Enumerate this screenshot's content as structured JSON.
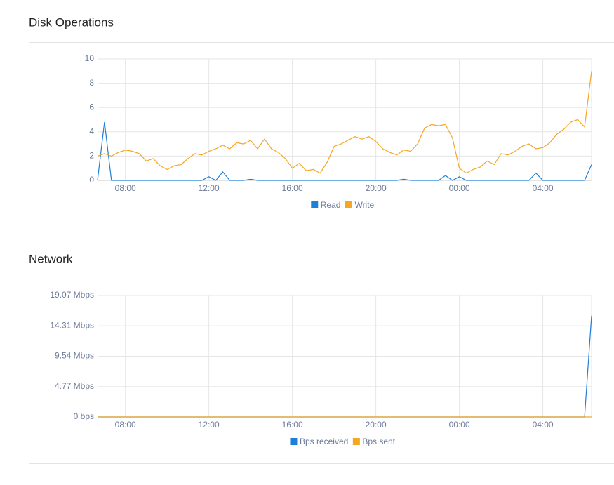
{
  "chart_data": [
    {
      "type": "line",
      "title": "Disk Operations",
      "categories": [
        null,
        null,
        null,
        null,
        "08:00",
        null,
        null,
        null,
        null,
        null,
        null,
        null,
        null,
        null,
        null,
        null,
        "12:00",
        null,
        null,
        null,
        null,
        null,
        null,
        null,
        null,
        null,
        null,
        null,
        "16:00",
        null,
        null,
        null,
        null,
        null,
        null,
        null,
        null,
        null,
        null,
        null,
        "20:00",
        null,
        null,
        null,
        null,
        null,
        null,
        null,
        null,
        null,
        null,
        null,
        "00:00",
        null,
        null,
        null,
        null,
        null,
        null,
        null,
        null,
        null,
        null,
        null,
        "04:00",
        null,
        null,
        null,
        null,
        null,
        null,
        null
      ],
      "series": [
        {
          "name": "Read",
          "color": "#1e7fd8",
          "values": [
            0,
            4.8,
            0,
            0,
            0,
            0,
            0,
            0,
            0,
            0,
            0,
            0,
            0,
            0,
            0,
            0,
            0.3,
            0,
            0.7,
            0,
            0,
            0,
            0.1,
            0,
            0,
            0,
            0,
            0,
            0,
            0,
            0,
            0,
            0,
            0,
            0,
            0,
            0,
            0,
            0,
            0,
            0,
            0,
            0,
            0,
            0.1,
            0,
            0,
            0,
            0,
            0,
            0.4,
            0,
            0.3,
            0,
            0,
            0,
            0,
            0,
            0,
            0,
            0,
            0,
            0,
            0.6,
            0,
            0,
            0,
            0,
            0,
            0,
            0,
            1.3
          ]
        },
        {
          "name": "Write",
          "color": "#f5a623",
          "values": [
            2.0,
            2.2,
            2.0,
            2.3,
            2.5,
            2.4,
            2.2,
            1.6,
            1.8,
            1.2,
            0.9,
            1.2,
            1.3,
            1.8,
            2.2,
            2.1,
            2.4,
            2.6,
            2.9,
            2.6,
            3.1,
            3.0,
            3.3,
            2.6,
            3.4,
            2.6,
            2.3,
            1.8,
            1.0,
            1.4,
            0.8,
            0.9,
            0.6,
            1.5,
            2.8,
            3.0,
            3.3,
            3.6,
            3.4,
            3.6,
            3.2,
            2.6,
            2.3,
            2.1,
            2.5,
            2.4,
            3.0,
            4.3,
            4.6,
            4.5,
            4.6,
            3.5,
            1.0,
            0.6,
            0.9,
            1.1,
            1.6,
            1.3,
            2.2,
            2.1,
            2.4,
            2.8,
            3.0,
            2.6,
            2.7,
            3.1,
            3.8,
            4.2,
            4.8,
            5.0,
            4.4,
            9.0
          ]
        }
      ],
      "ylim": [
        0,
        10
      ],
      "yticks": [
        0,
        2,
        4,
        6,
        8,
        10
      ],
      "grid": true,
      "legend": "bottom"
    },
    {
      "type": "line",
      "title": "Network",
      "categories": [
        null,
        null,
        null,
        null,
        "08:00",
        null,
        null,
        null,
        null,
        null,
        null,
        null,
        null,
        null,
        null,
        null,
        "12:00",
        null,
        null,
        null,
        null,
        null,
        null,
        null,
        null,
        null,
        null,
        null,
        "16:00",
        null,
        null,
        null,
        null,
        null,
        null,
        null,
        null,
        null,
        null,
        null,
        "20:00",
        null,
        null,
        null,
        null,
        null,
        null,
        null,
        null,
        null,
        null,
        null,
        "00:00",
        null,
        null,
        null,
        null,
        null,
        null,
        null,
        null,
        null,
        null,
        null,
        "04:00",
        null,
        null,
        null,
        null,
        null,
        null,
        null
      ],
      "series": [
        {
          "name": "Bps received",
          "color": "#1e7fd8",
          "values": [
            0,
            0,
            0,
            0,
            0,
            0,
            0,
            0,
            0,
            0,
            0,
            0,
            0,
            0,
            0,
            0,
            0,
            0,
            0,
            0,
            0,
            0,
            0,
            0,
            0,
            0,
            0,
            0,
            0,
            0,
            0,
            0,
            0,
            0,
            0,
            0,
            0,
            0,
            0,
            0,
            0,
            0,
            0,
            0,
            0,
            0,
            0,
            0,
            0,
            0,
            0,
            0,
            0,
            0,
            0,
            0,
            0,
            0,
            0,
            0,
            0,
            0,
            0,
            0,
            0,
            0,
            0,
            0,
            0,
            0,
            0,
            15.9
          ]
        },
        {
          "name": "Bps sent",
          "color": "#f5a623",
          "values": [
            0,
            0,
            0,
            0,
            0,
            0,
            0,
            0,
            0,
            0,
            0,
            0,
            0,
            0,
            0,
            0,
            0,
            0,
            0,
            0,
            0,
            0,
            0,
            0,
            0,
            0,
            0,
            0,
            0,
            0,
            0,
            0,
            0,
            0,
            0,
            0,
            0,
            0,
            0,
            0,
            0,
            0,
            0,
            0,
            0,
            0,
            0,
            0,
            0,
            0,
            0,
            0,
            0,
            0,
            0,
            0,
            0,
            0,
            0,
            0,
            0,
            0,
            0,
            0,
            0,
            0,
            0,
            0,
            0,
            0,
            0,
            0
          ]
        }
      ],
      "ylim": [
        0,
        19.07
      ],
      "yticks": [
        {
          "value": 0,
          "label": "0 bps"
        },
        {
          "value": 4.77,
          "label": "4.77 Mbps"
        },
        {
          "value": 9.54,
          "label": "9.54 Mbps"
        },
        {
          "value": 14.31,
          "label": "14.31 Mbps"
        },
        {
          "value": 19.07,
          "label": "19.07 Mbps"
        }
      ],
      "grid": true,
      "legend": "bottom"
    }
  ]
}
